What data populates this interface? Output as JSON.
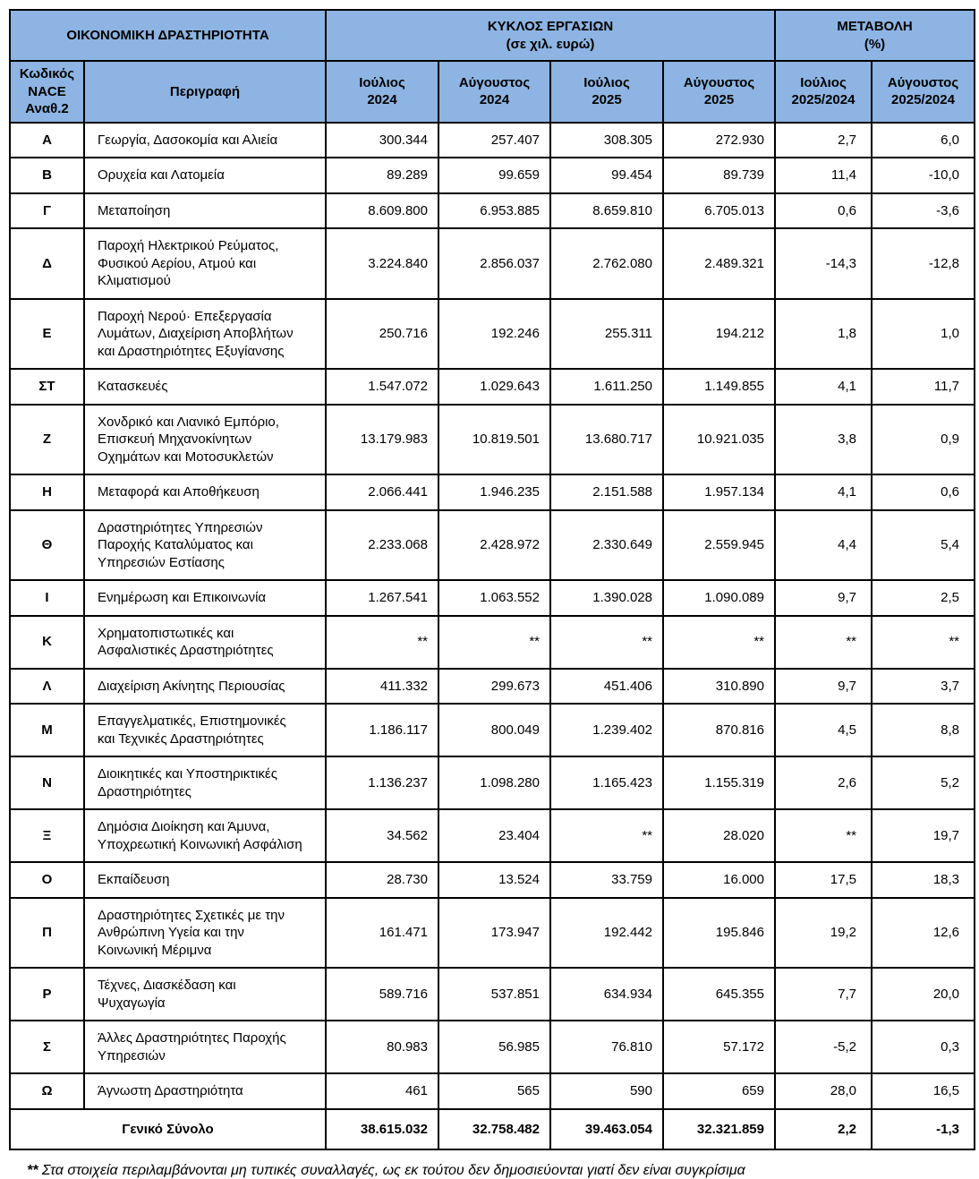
{
  "colors": {
    "header_bg": "#8DB4E2",
    "border": "#000000",
    "text": "#000000"
  },
  "table": {
    "header": {
      "activity_group": "ΟΙΚΟΝΟΜΙΚΗ ΔΡΑΣΤΗΡΙΟΤΗΤΑ",
      "turnover_group": "ΚΥΚΛΟΣ ΕΡΓΑΣΙΩΝ\n(σε χιλ. ευρώ)",
      "change_group": "ΜΕΤΑΒΟΛΗ\n(%)",
      "code_col": "Κωδικός\nNACE\nΑναθ.2",
      "desc_col": "Περιγραφή",
      "month_cols": [
        "Ιούλιος\n2024",
        "Αύγουστος\n2024",
        "Ιούλιος\n2025",
        "Αύγουστος\n2025"
      ],
      "change_cols": [
        "Ιούλιος\n2025/2024",
        "Αύγουστος\n2025/2024"
      ]
    },
    "rows": [
      {
        "code": "Α",
        "desc": "Γεωργία, Δασοκομία και Αλιεία",
        "values": [
          "300.344",
          "257.407",
          "308.305",
          "272.930",
          "2,7",
          "6,0"
        ]
      },
      {
        "code": "Β",
        "desc": "Ορυχεία και Λατομεία",
        "values": [
          "89.289",
          "99.659",
          "99.454",
          "89.739",
          "11,4",
          "-10,0"
        ]
      },
      {
        "code": "Γ",
        "desc": "Μεταποίηση",
        "values": [
          "8.609.800",
          "6.953.885",
          "8.659.810",
          "6.705.013",
          "0,6",
          "-3,6"
        ]
      },
      {
        "code": "Δ",
        "desc": "Παροχή Ηλεκτρικού Ρεύματος,\nΦυσικού Αερίου, Ατμού και\nΚλιματισμού",
        "values": [
          "3.224.840",
          "2.856.037",
          "2.762.080",
          "2.489.321",
          "-14,3",
          "-12,8"
        ]
      },
      {
        "code": "Ε",
        "desc": "Παροχή Νερού· Επεξεργασία\nΛυμάτων, Διαχείριση Αποβλήτων\nκαι Δραστηριότητες Εξυγίανσης",
        "values": [
          "250.716",
          "192.246",
          "255.311",
          "194.212",
          "1,8",
          "1,0"
        ]
      },
      {
        "code": "ΣΤ",
        "desc": "Κατασκευές",
        "values": [
          "1.547.072",
          "1.029.643",
          "1.611.250",
          "1.149.855",
          "4,1",
          "11,7"
        ]
      },
      {
        "code": "Ζ",
        "desc": "Χονδρικό και Λιανικό Εμπόριο,\nΕπισκευή Μηχανοκίνητων\nΟχημάτων και Μοτοσυκλετών",
        "values": [
          "13.179.983",
          "10.819.501",
          "13.680.717",
          "10.921.035",
          "3,8",
          "0,9"
        ]
      },
      {
        "code": "Η",
        "desc": "Μεταφορά και Αποθήκευση",
        "values": [
          "2.066.441",
          "1.946.235",
          "2.151.588",
          "1.957.134",
          "4,1",
          "0,6"
        ]
      },
      {
        "code": "Θ",
        "desc": "Δραστηριότητες Υπηρεσιών\nΠαροχής Καταλύματος και\nΥπηρεσιών Εστίασης",
        "values": [
          "2.233.068",
          "2.428.972",
          "2.330.649",
          "2.559.945",
          "4,4",
          "5,4"
        ]
      },
      {
        "code": "Ι",
        "desc": "Ενημέρωση και Επικοινωνία",
        "values": [
          "1.267.541",
          "1.063.552",
          "1.390.028",
          "1.090.089",
          "9,7",
          "2,5"
        ]
      },
      {
        "code": "Κ",
        "desc": "Χρηματοπιστωτικές και\nΑσφαλιστικές Δραστηριότητες",
        "values": [
          "**",
          "**",
          "**",
          "**",
          "**",
          "**"
        ]
      },
      {
        "code": "Λ",
        "desc": "Διαχείριση Ακίνητης Περιουσίας",
        "values": [
          "411.332",
          "299.673",
          "451.406",
          "310.890",
          "9,7",
          "3,7"
        ]
      },
      {
        "code": "Μ",
        "desc": "Επαγγελματικές, Επιστημονικές\nκαι Τεχνικές Δραστηριότητες",
        "values": [
          "1.186.117",
          "800.049",
          "1.239.402",
          "870.816",
          "4,5",
          "8,8"
        ]
      },
      {
        "code": "Ν",
        "desc": "Διοικητικές και Υποστηρικτικές\nΔραστηριότητες",
        "values": [
          "1.136.237",
          "1.098.280",
          "1.165.423",
          "1.155.319",
          "2,6",
          "5,2"
        ]
      },
      {
        "code": "Ξ",
        "desc": "Δημόσια Διοίκηση και Άμυνα,\nΥποχρεωτική Κοινωνική Ασφάλιση",
        "values": [
          "34.562",
          "23.404",
          "**",
          "28.020",
          "**",
          "19,7"
        ]
      },
      {
        "code": "Ο",
        "desc": "Εκπαίδευση",
        "values": [
          "28.730",
          "13.524",
          "33.759",
          "16.000",
          "17,5",
          "18,3"
        ]
      },
      {
        "code": "Π",
        "desc": "Δραστηριότητες Σχετικές με την\nΑνθρώπινη Υγεία και την\nΚοινωνική Μέριμνα",
        "values": [
          "161.471",
          "173.947",
          "192.442",
          "195.846",
          "19,2",
          "12,6"
        ]
      },
      {
        "code": "Ρ",
        "desc": "Τέχνες, Διασκέδαση και\nΨυχαγωγία",
        "values": [
          "589.716",
          "537.851",
          "634.934",
          "645.355",
          "7,7",
          "20,0"
        ]
      },
      {
        "code": "Σ",
        "desc": "Άλλες Δραστηριότητες Παροχής\nΥπηρεσιών",
        "values": [
          "80.983",
          "56.985",
          "76.810",
          "57.172",
          "-5,2",
          "0,3"
        ]
      },
      {
        "code": "Ω",
        "desc": "Άγνωστη Δραστηριότητα",
        "values": [
          "461",
          "565",
          "590",
          "659",
          "28,0",
          "16,5"
        ]
      }
    ],
    "total": {
      "label": "Γενικό Σύνολο",
      "values": [
        "38.615.032",
        "32.758.482",
        "39.463.054",
        "32.321.859",
        "2,2",
        "-1,3"
      ]
    },
    "footnote_marker": "**",
    "footnote_text": "Στα στοιχεία περιλαμβάνονται μη τυπικές συναλλαγές, ως εκ τούτου δεν δημοσιεύονται γιατί δεν είναι συγκρίσιμα"
  }
}
